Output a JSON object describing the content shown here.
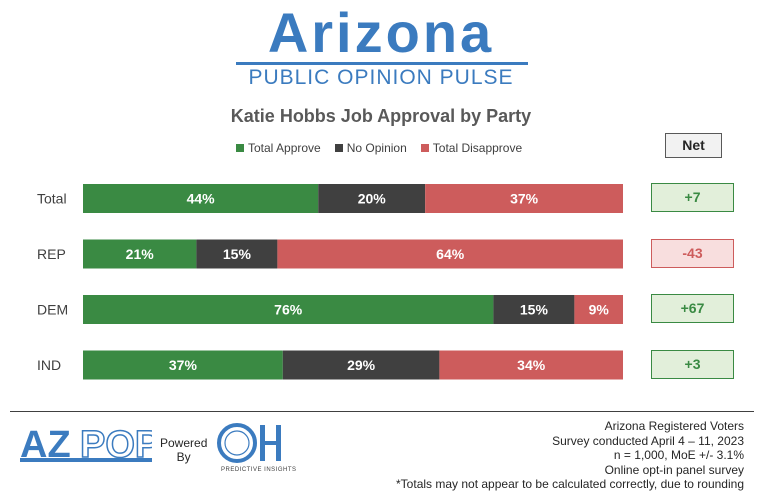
{
  "header": {
    "logo_title": "Arizona",
    "logo_subtitle": "PUBLIC OPINION PULSE"
  },
  "chart_data": {
    "type": "bar",
    "title": "Katie Hobbs Job Approval by Party",
    "categories": [
      "Total",
      "REP",
      "DEM",
      "IND"
    ],
    "series": [
      {
        "name": "Total Approve",
        "color": "#3a8a43",
        "values": [
          44,
          21,
          76,
          37
        ],
        "labels": [
          "44%",
          "21%",
          "76%",
          "37%"
        ]
      },
      {
        "name": "No Opinion",
        "color": "#404040",
        "values": [
          20,
          15,
          15,
          29
        ],
        "labels": [
          "20%",
          "15%",
          "15%",
          "29%"
        ]
      },
      {
        "name": "Total Disapprove",
        "color": "#cd5c5c",
        "values": [
          37,
          64,
          9,
          34
        ],
        "labels": [
          "37%",
          "64%",
          "9%",
          "34%"
        ]
      }
    ],
    "stacked": true,
    "legend_position": "top",
    "net": {
      "header": "Net",
      "values": [
        "+7",
        "-43",
        "+67",
        "+3"
      ],
      "positive_color": "#3a8a43",
      "negative_color": "#cd5c5c"
    }
  },
  "footer": {
    "azpop_logo": "AZPOP",
    "powered_by": [
      "Powered",
      "By"
    ],
    "oh_logo": "OH",
    "oh_caption": "PREDICTIVE INSIGHTS",
    "notes": [
      "Arizona Registered Voters",
      "Survey conducted April 4 – 11, 2023",
      "n = 1,000, MoE +/- 3.1%",
      "Online opt-in panel survey",
      "*Totals may not appear to be calculated correctly, due to rounding"
    ]
  }
}
